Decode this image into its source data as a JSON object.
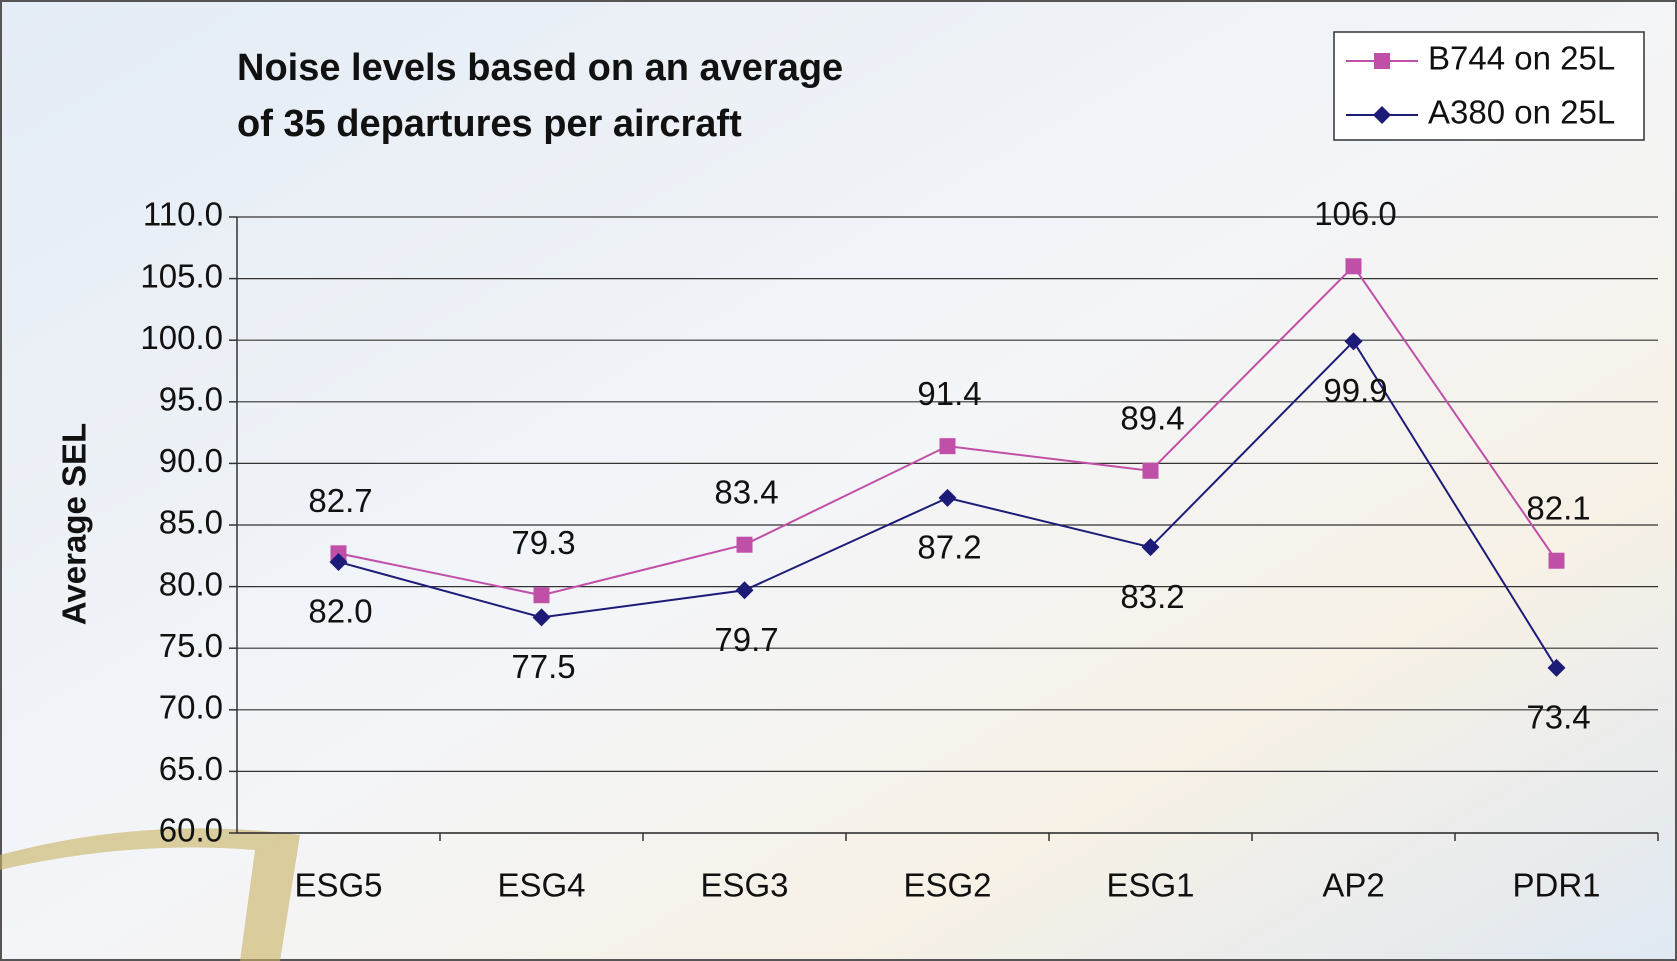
{
  "chart_data": {
    "type": "line",
    "title": [
      "Noise levels based on an average",
      "of 35 departures per aircraft"
    ],
    "y_label": "Average SEL",
    "categories": [
      "ESG5",
      "ESG4",
      "ESG3",
      "ESG2",
      "ESG1",
      "AP2",
      "PDR1"
    ],
    "series": [
      {
        "name": "B744 on 25L",
        "color": "#c04fa8",
        "marker": "square",
        "label_side": "above",
        "values": [
          82.7,
          79.3,
          83.4,
          91.4,
          89.4,
          106.0,
          82.1
        ],
        "value_labels": [
          "82.7",
          "79.3",
          "83.4",
          "91.4",
          "89.4",
          "106.0",
          "82.1"
        ]
      },
      {
        "name": "A380 on 25L",
        "color": "#1c1c78",
        "marker": "diamond",
        "label_side": "below",
        "values": [
          82.0,
          77.5,
          79.7,
          87.2,
          83.2,
          99.9,
          73.4
        ],
        "value_labels": [
          "82.0",
          "77.5",
          "79.7",
          "87.2",
          "83.2",
          "99.9",
          "73.4"
        ]
      }
    ],
    "ylim": [
      60,
      110
    ],
    "yticks": [
      {
        "value": 60,
        "label": "60.0"
      },
      {
        "value": 65,
        "label": "65.0"
      },
      {
        "value": 70,
        "label": "70.0"
      },
      {
        "value": 75,
        "label": "75.0"
      },
      {
        "value": 80,
        "label": "80.0"
      },
      {
        "value": 85,
        "label": "85.0"
      },
      {
        "value": 90,
        "label": "90.0"
      },
      {
        "value": 95,
        "label": "95.0"
      },
      {
        "value": 100,
        "label": "100.0"
      },
      {
        "value": 105,
        "label": "105.0"
      },
      {
        "value": 110,
        "label": "110.0"
      }
    ],
    "grid": true,
    "legend": "top-right"
  }
}
